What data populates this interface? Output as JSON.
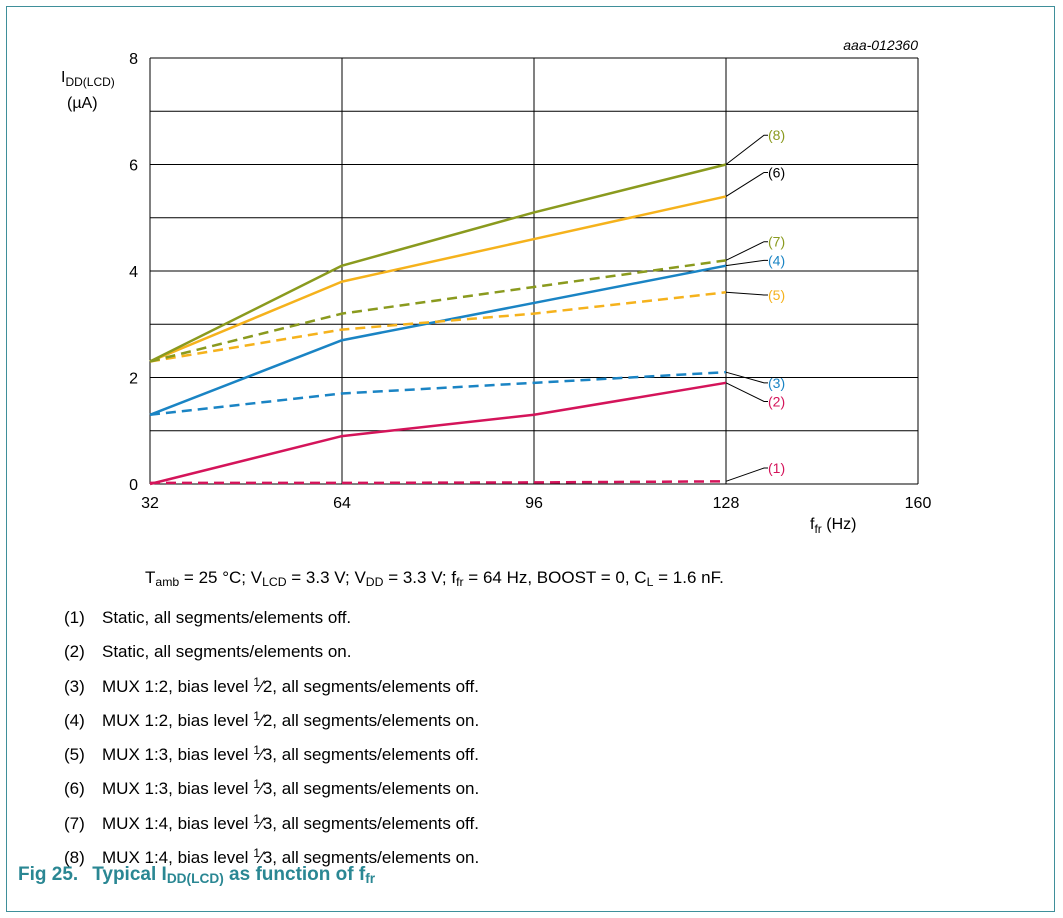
{
  "chart_data": {
    "type": "line",
    "figure_id": "aaa-012360",
    "x": [
      32,
      64,
      96,
      128
    ],
    "xlim": [
      32,
      160
    ],
    "ylim": [
      0,
      8
    ],
    "xticks": [
      32,
      64,
      96,
      128,
      160
    ],
    "yticks": [
      0,
      2,
      4,
      6,
      8
    ],
    "xlabel": {
      "main": "f",
      "sub": "fr",
      "unit": " (Hz)"
    },
    "ylabel": {
      "main": "I",
      "sub": "DD(LCD)",
      "unit": "(µA)"
    },
    "grid": true,
    "series": [
      {
        "name": "(1)",
        "values": [
          0.02,
          0.02,
          0.03,
          0.05
        ],
        "style": "dashed",
        "color": "#d4145a"
      },
      {
        "name": "(2)",
        "values": [
          0.0,
          0.9,
          1.3,
          1.9
        ],
        "style": "solid",
        "color": "#d4145a"
      },
      {
        "name": "(3)",
        "values": [
          1.3,
          1.7,
          1.9,
          2.1
        ],
        "style": "dashed",
        "color": "#1a84c4"
      },
      {
        "name": "(4)",
        "values": [
          1.3,
          2.7,
          3.4,
          4.1
        ],
        "style": "solid",
        "color": "#1a84c4"
      },
      {
        "name": "(5)",
        "values": [
          2.3,
          2.9,
          3.2,
          3.6
        ],
        "style": "dashed",
        "color": "#f5b21c"
      },
      {
        "name": "(6)",
        "values": [
          2.3,
          3.8,
          4.6,
          5.4
        ],
        "style": "solid",
        "color": "#f5b21c"
      },
      {
        "name": "(7)",
        "values": [
          2.3,
          3.2,
          3.7,
          4.2
        ],
        "style": "dashed",
        "color": "#8a9a1e"
      },
      {
        "name": "(8)",
        "values": [
          2.3,
          4.1,
          5.1,
          6.0
        ],
        "style": "solid",
        "color": "#8a9a1e"
      }
    ],
    "series_labels": [
      {
        "text": "(8)",
        "color": "#8a9a1e",
        "anchor_y": 6.0,
        "label_y": 6.55
      },
      {
        "text": "(6)",
        "color": "#000000",
        "anchor_y": 5.4,
        "label_y": 5.85
      },
      {
        "text": "(7)",
        "color": "#8a9a1e",
        "anchor_y": 4.2,
        "label_y": 4.55
      },
      {
        "text": "(4)",
        "color": "#1a84c4",
        "anchor_y": 4.1,
        "label_y": 4.2
      },
      {
        "text": "(5)",
        "color": "#f5b21c",
        "anchor_y": 3.6,
        "label_y": 3.55
      },
      {
        "text": "(3)",
        "color": "#1a84c4",
        "anchor_y": 2.1,
        "label_y": 1.9
      },
      {
        "text": "(2)",
        "color": "#d4145a",
        "anchor_y": 1.9,
        "label_y": 1.55
      },
      {
        "text": "(1)",
        "color": "#d4145a",
        "anchor_y": 0.05,
        "label_y": 0.3
      }
    ]
  },
  "conditions": {
    "t_main": "T",
    "t_sub": "amb",
    "t_rest": " = 25 °C; ",
    "vlcd_main": "V",
    "vlcd_sub": "LCD",
    "vlcd_rest": " = 3.3 V; ",
    "vdd_main": "V",
    "vdd_sub": "DD",
    "vdd_rest": " = 3.3 V; ",
    "ffr_main": "f",
    "ffr_sub": "fr",
    "ffr_rest": " = 64 Hz, BOOST = 0, ",
    "cl_main": "C",
    "cl_sub": "L",
    "cl_rest": " = 1.6 nF."
  },
  "legend": [
    {
      "num": "(1)",
      "pre": "Static, all segments/elements off.",
      "sup": "",
      "den": "",
      "post": ""
    },
    {
      "num": "(2)",
      "pre": "Static, all segments/elements on.",
      "sup": "",
      "den": "",
      "post": ""
    },
    {
      "num": "(3)",
      "pre": "MUX 1:2, bias level ",
      "sup": "1",
      "den": "⁄2",
      "post": ", all segments/elements off."
    },
    {
      "num": "(4)",
      "pre": "MUX 1:2, bias level ",
      "sup": "1",
      "den": "⁄2",
      "post": ", all segments/elements on."
    },
    {
      "num": "(5)",
      "pre": "MUX 1:3, bias level ",
      "sup": "1",
      "den": "⁄3",
      "post": ", all segments/elements off."
    },
    {
      "num": "(6)",
      "pre": "MUX 1:3, bias level ",
      "sup": "1",
      "den": "⁄3",
      "post": ", all segments/elements on."
    },
    {
      "num": "(7)",
      "pre": "MUX 1:4, bias level ",
      "sup": "1",
      "den": "⁄3",
      "post": ", all segments/elements off."
    },
    {
      "num": "(8)",
      "pre": "MUX 1:4, bias level ",
      "sup": "1",
      "den": "⁄3",
      "post": ", all segments/elements on."
    }
  ],
  "caption": {
    "fig": "Fig 25.",
    "pre": "Typical I",
    "sub": "DD(LCD)",
    "mid": " as function of f",
    "sub2": "fr"
  }
}
